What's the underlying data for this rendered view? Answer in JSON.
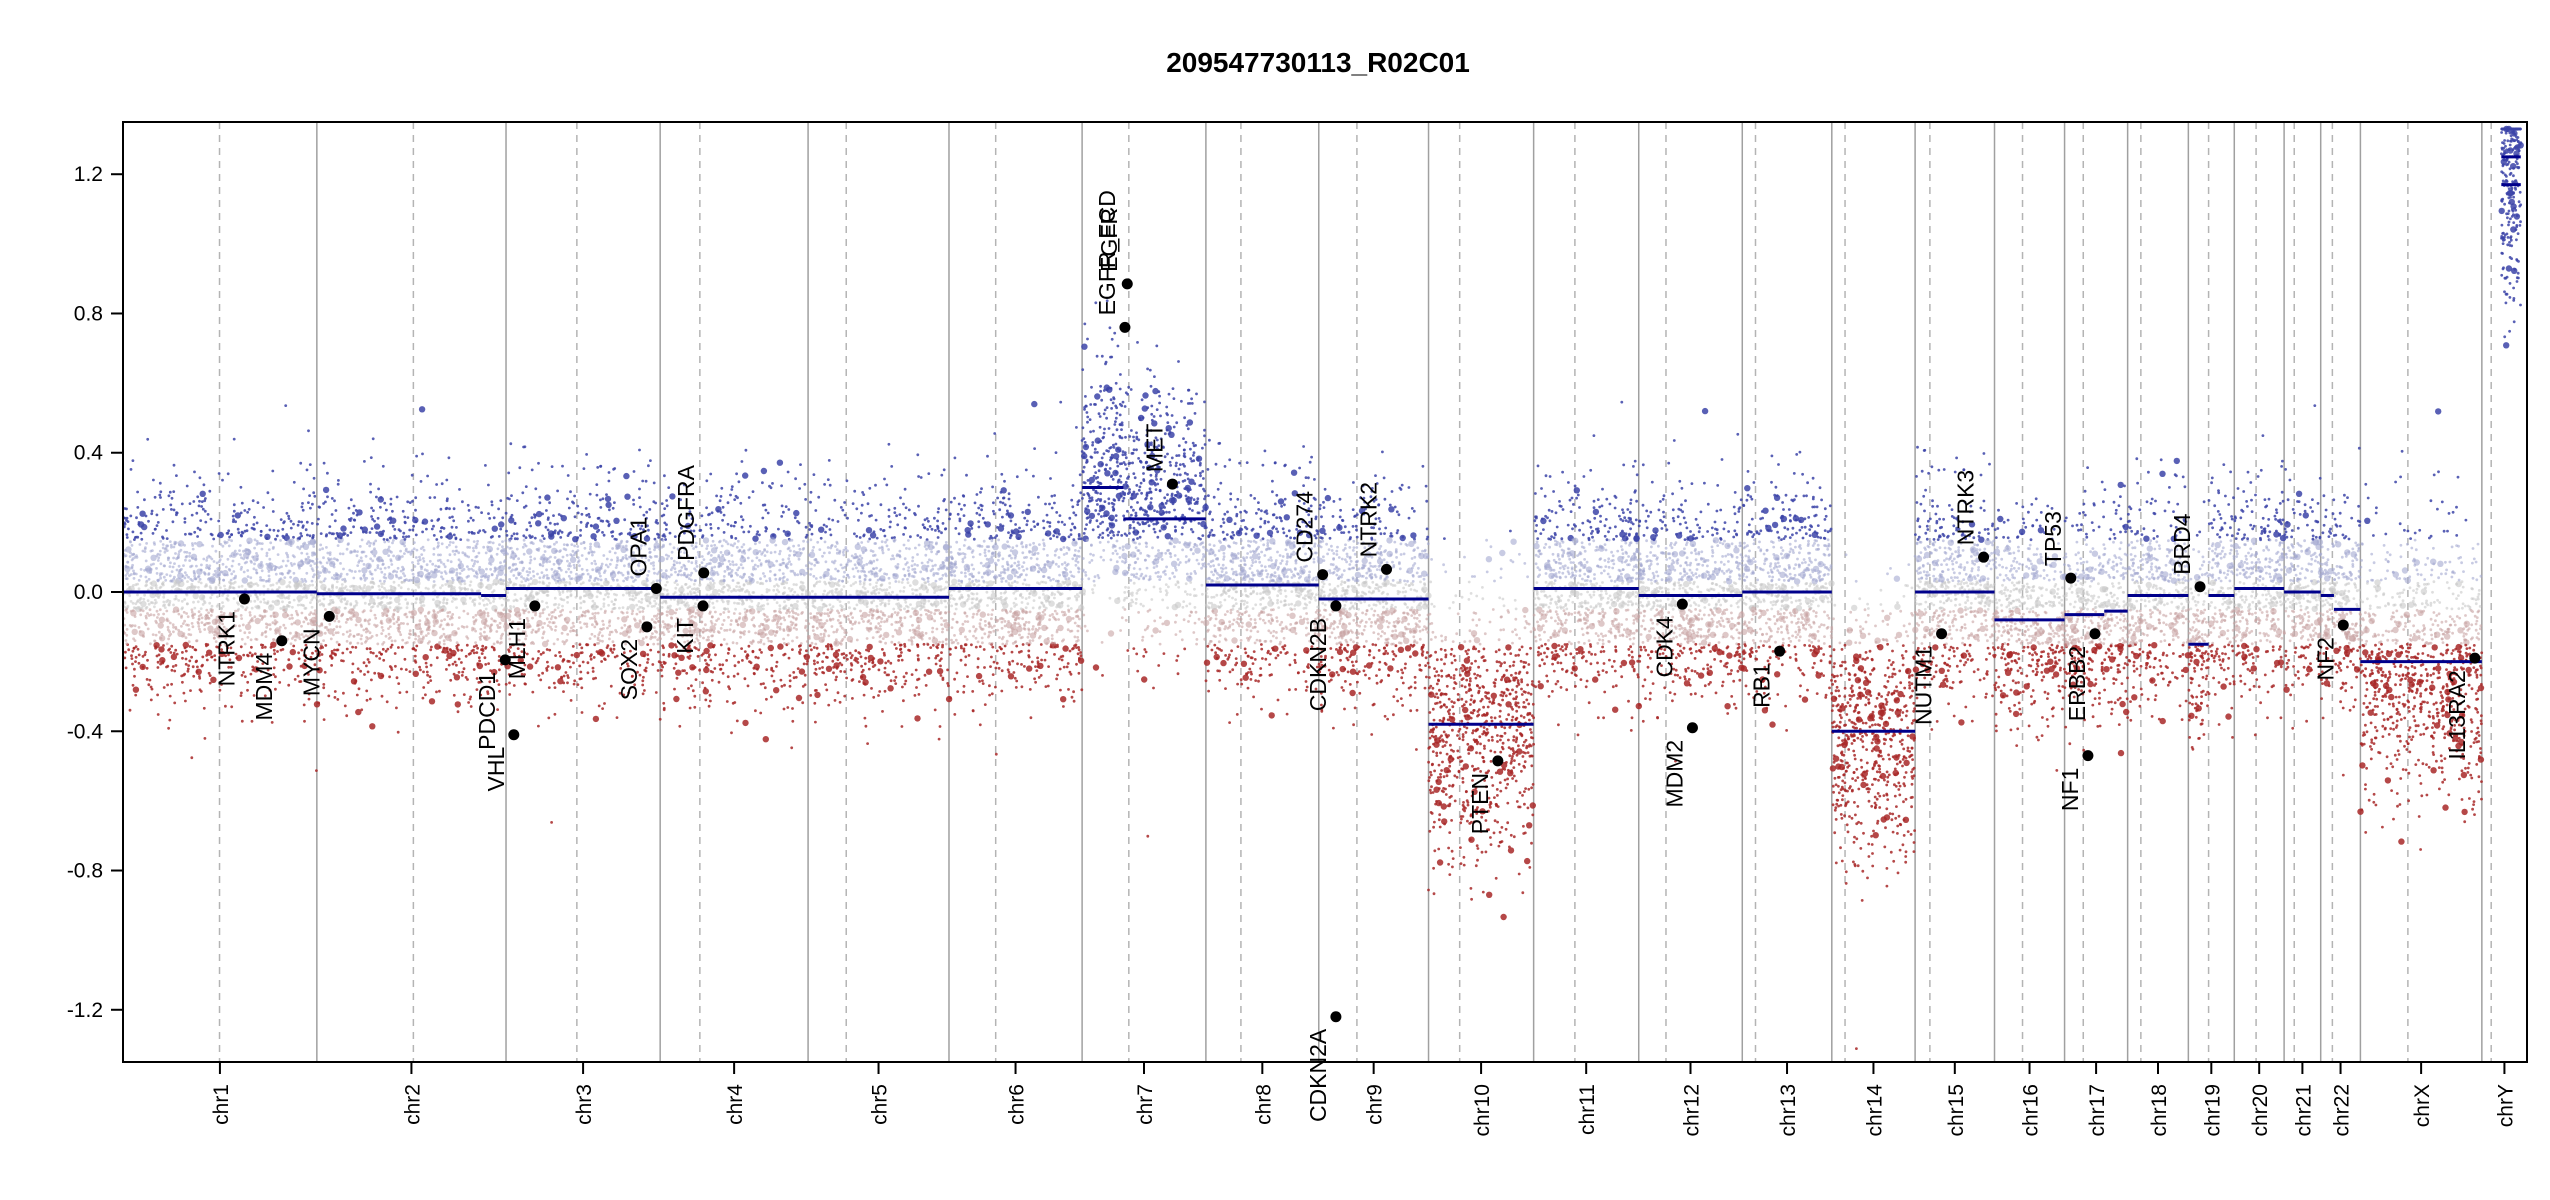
{
  "chart_data": {
    "type": "scatter",
    "title": "209547730113_R02C01",
    "xlabel": "",
    "ylabel": "",
    "ylim": [
      -1.35,
      1.35
    ],
    "yticks": [
      -1.2,
      -0.8,
      -0.4,
      0.0,
      0.4,
      0.8,
      1.2
    ],
    "ytick_labels": [
      "-1.2",
      "-0.8",
      "-0.4",
      "0.0",
      "0.4",
      "0.8",
      "1.2"
    ],
    "colors": {
      "gain": "#3c44a8",
      "gain_light": "#a4a8d0",
      "neutral": "#c8c8c8",
      "loss": "#a82828",
      "loss_light": "#c8a4a4",
      "segment": "#00008b",
      "gene_point": "#000000",
      "chrom_border": "#a0a0a0",
      "centromere": "#b4b4b4"
    },
    "chromosomes": [
      {
        "name": "chr1",
        "start": 0,
        "end": 249,
        "centromere": 124
      },
      {
        "name": "chr2",
        "start": 249,
        "end": 492,
        "centromere": 373
      },
      {
        "name": "chr3",
        "start": 492,
        "end": 690,
        "centromere": 583
      },
      {
        "name": "chr4",
        "start": 690,
        "end": 880,
        "centromere": 741
      },
      {
        "name": "chr5",
        "start": 880,
        "end": 1061,
        "centromere": 929
      },
      {
        "name": "chr6",
        "start": 1061,
        "end": 1232,
        "centromere": 1121
      },
      {
        "name": "chr7",
        "start": 1232,
        "end": 1391,
        "centromere": 1292
      },
      {
        "name": "chr8",
        "start": 1391,
        "end": 1536,
        "centromere": 1436
      },
      {
        "name": "chr9",
        "start": 1536,
        "end": 1677,
        "centromere": 1585
      },
      {
        "name": "chr10",
        "start": 1677,
        "end": 1812,
        "centromere": 1717
      },
      {
        "name": "chr11",
        "start": 1812,
        "end": 1947,
        "centromere": 1865
      },
      {
        "name": "chr12",
        "start": 1947,
        "end": 2080,
        "centromere": 1982
      },
      {
        "name": "chr13",
        "start": 2080,
        "end": 2195,
        "centromere": 2097
      },
      {
        "name": "chr14",
        "start": 2195,
        "end": 2302,
        "centromere": 2212
      },
      {
        "name": "chr15",
        "start": 2302,
        "end": 2404,
        "centromere": 2321
      },
      {
        "name": "chr16",
        "start": 2404,
        "end": 2494,
        "centromere": 2440
      },
      {
        "name": "chr17",
        "start": 2494,
        "end": 2575,
        "centromere": 2518
      },
      {
        "name": "chr18",
        "start": 2575,
        "end": 2653,
        "centromere": 2592
      },
      {
        "name": "chr19",
        "start": 2653,
        "end": 2712,
        "centromere": 2679
      },
      {
        "name": "chr20",
        "start": 2712,
        "end": 2776,
        "centromere": 2740
      },
      {
        "name": "chr21",
        "start": 2776,
        "end": 2823,
        "centromere": 2789
      },
      {
        "name": "chr22",
        "start": 2823,
        "end": 2874,
        "centromere": 2838
      },
      {
        "name": "chrX",
        "start": 2874,
        "end": 3030,
        "centromere": 2935
      },
      {
        "name": "chrY",
        "start": 3030,
        "end": 3088,
        "centromere": 3042
      }
    ],
    "segments": [
      {
        "chr": "chr1",
        "start": 0,
        "end": 249,
        "value": 0.0
      },
      {
        "chr": "chr2",
        "start": 249,
        "end": 460,
        "value": -0.005
      },
      {
        "chr": "chr2",
        "start": 460,
        "end": 492,
        "value": -0.01
      },
      {
        "chr": "chr3",
        "start": 492,
        "end": 690,
        "value": 0.01
      },
      {
        "chr": "chr4",
        "start": 690,
        "end": 880,
        "value": -0.015
      },
      {
        "chr": "chr5",
        "start": 880,
        "end": 1061,
        "value": -0.015
      },
      {
        "chr": "chr6",
        "start": 1061,
        "end": 1232,
        "value": 0.01
      },
      {
        "chr": "chr7",
        "start": 1232,
        "end": 1285,
        "value": 0.3
      },
      {
        "chr": "chr7",
        "start": 1285,
        "end": 1391,
        "value": 0.21
      },
      {
        "chr": "chr8",
        "start": 1391,
        "end": 1536,
        "value": 0.02
      },
      {
        "chr": "chr9",
        "start": 1536,
        "end": 1677,
        "value": -0.02
      },
      {
        "chr": "chr10",
        "start": 1677,
        "end": 1812,
        "value": -0.38
      },
      {
        "chr": "chr11",
        "start": 1812,
        "end": 1947,
        "value": 0.01
      },
      {
        "chr": "chr12",
        "start": 1947,
        "end": 2080,
        "value": -0.01
      },
      {
        "chr": "chr13",
        "start": 2080,
        "end": 2195,
        "value": 0.0
      },
      {
        "chr": "chr14",
        "start": 2195,
        "end": 2302,
        "value": -0.4
      },
      {
        "chr": "chr15",
        "start": 2302,
        "end": 2404,
        "value": 0.0
      },
      {
        "chr": "chr16",
        "start": 2404,
        "end": 2494,
        "value": -0.08
      },
      {
        "chr": "chr17",
        "start": 2494,
        "end": 2545,
        "value": -0.065
      },
      {
        "chr": "chr17",
        "start": 2545,
        "end": 2575,
        "value": -0.055
      },
      {
        "chr": "chr18",
        "start": 2575,
        "end": 2653,
        "value": -0.01
      },
      {
        "chr": "chr19",
        "start": 2653,
        "end": 2679,
        "value": -0.15
      },
      {
        "chr": "chr19",
        "start": 2679,
        "end": 2712,
        "value": -0.01
      },
      {
        "chr": "chr20",
        "start": 2712,
        "end": 2776,
        "value": 0.01
      },
      {
        "chr": "chr21",
        "start": 2776,
        "end": 2823,
        "value": 0.0
      },
      {
        "chr": "chr22",
        "start": 2823,
        "end": 2840,
        "value": -0.01
      },
      {
        "chr": "chr22",
        "start": 2840,
        "end": 2874,
        "value": -0.05
      },
      {
        "chr": "chrX",
        "start": 2874,
        "end": 3030,
        "value": -0.2
      },
      {
        "chr": "chrY",
        "start": 3055,
        "end": 3080,
        "value": 1.25
      },
      {
        "chr": "chrY",
        "start": 3055,
        "end": 3080,
        "value": 1.17
      }
    ],
    "genes": [
      {
        "name": "NTRK1",
        "pos": 156,
        "value": -0.02
      },
      {
        "name": "MDM4",
        "pos": 204,
        "value": -0.14
      },
      {
        "name": "MYCN",
        "pos": 265,
        "value": -0.07
      },
      {
        "name": "VHL",
        "pos": 502,
        "value": -0.41
      },
      {
        "name": "PDCD1",
        "pos": 491,
        "value": -0.195
      },
      {
        "name": "MLH1",
        "pos": 529,
        "value": -0.04
      },
      {
        "name": "SOX2",
        "pos": 673,
        "value": -0.1
      },
      {
        "name": "OPA1",
        "pos": 685,
        "value": 0.01
      },
      {
        "name": "KIT",
        "pos": 745,
        "value": -0.04
      },
      {
        "name": "PDGFRA",
        "pos": 746,
        "value": 0.055
      },
      {
        "name": "EGFR_ECD",
        "pos": 1287,
        "value": 0.76
      },
      {
        "name": "EGFR",
        "pos": 1290,
        "value": 0.885
      },
      {
        "name": "MET",
        "pos": 1348,
        "value": 0.31
      },
      {
        "name": "CD274",
        "pos": 1541,
        "value": 0.05
      },
      {
        "name": "CDKN2B",
        "pos": 1558,
        "value": -0.04
      },
      {
        "name": "CDKN2A",
        "pos": 1558,
        "value": -1.22
      },
      {
        "name": "NTRK2",
        "pos": 1623,
        "value": 0.065
      },
      {
        "name": "PTEN",
        "pos": 1766,
        "value": -0.485
      },
      {
        "name": "CDK4",
        "pos": 2003,
        "value": -0.035
      },
      {
        "name": "MDM2",
        "pos": 2016,
        "value": -0.39
      },
      {
        "name": "RB1",
        "pos": 2128,
        "value": -0.17
      },
      {
        "name": "NUTM1",
        "pos": 2336,
        "value": -0.12
      },
      {
        "name": "NTRK3",
        "pos": 2390,
        "value": 0.1
      },
      {
        "name": "TP53",
        "pos": 2502,
        "value": 0.04
      },
      {
        "name": "NF1",
        "pos": 2524,
        "value": -0.47
      },
      {
        "name": "ERBB2",
        "pos": 2533,
        "value": -0.12
      },
      {
        "name": "BRD4",
        "pos": 2668,
        "value": 0.015
      },
      {
        "name": "NF2",
        "pos": 2852,
        "value": -0.095
      },
      {
        "name": "IL13RA2",
        "pos": 3021,
        "value": -0.19
      }
    ]
  }
}
